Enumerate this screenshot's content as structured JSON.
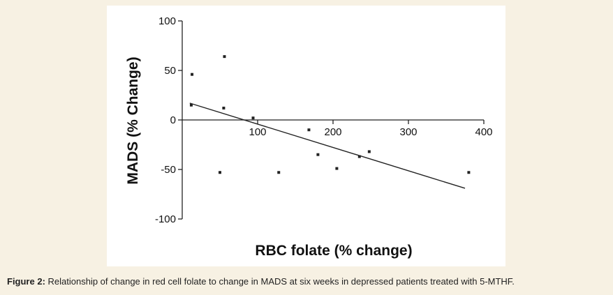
{
  "chart_data": {
    "type": "scatter",
    "xlabel": "RBC folate (% change)",
    "ylabel": "MADS (% Change)",
    "xlim": [
      0,
      400
    ],
    "ylim": [
      -100,
      100
    ],
    "x_ticks": [
      100,
      200,
      300,
      400
    ],
    "y_ticks": [
      100,
      50,
      0,
      -50,
      -100
    ],
    "grid": false,
    "legend": "none",
    "points": [
      {
        "x": 13,
        "y": 46
      },
      {
        "x": 12,
        "y": 15
      },
      {
        "x": 50,
        "y": -53
      },
      {
        "x": 55,
        "y": 12
      },
      {
        "x": 56,
        "y": 64
      },
      {
        "x": 94,
        "y": 2
      },
      {
        "x": 128,
        "y": -53
      },
      {
        "x": 168,
        "y": -10
      },
      {
        "x": 180,
        "y": -35
      },
      {
        "x": 205,
        "y": -49
      },
      {
        "x": 235,
        "y": -37
      },
      {
        "x": 248,
        "y": -32
      },
      {
        "x": 380,
        "y": -53
      }
    ],
    "regression_line": [
      {
        "x": 10,
        "y": 17
      },
      {
        "x": 375,
        "y": -69
      }
    ],
    "marker_color": "#222222",
    "line_color": "#222222"
  },
  "caption": {
    "label": "Figure 2:",
    "text": " Relationship of change in red cell folate to change in MADS at six weeks in depressed patients treated with 5-MTHF."
  }
}
